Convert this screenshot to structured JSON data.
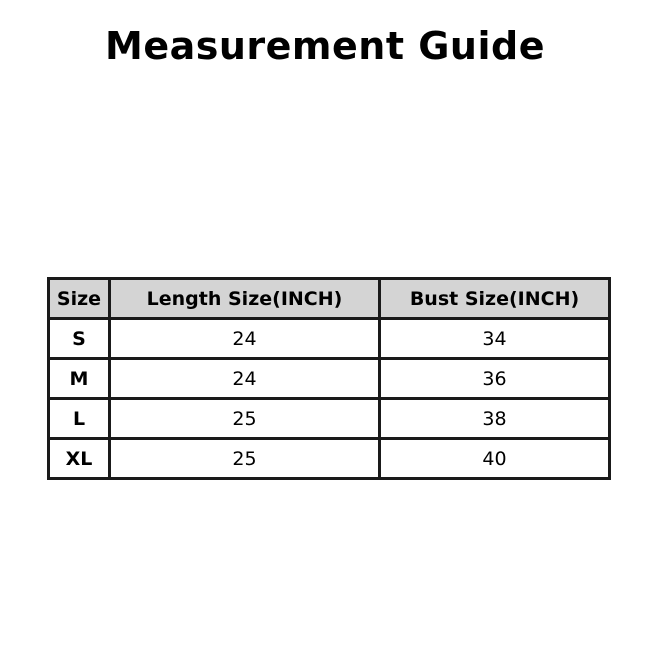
{
  "title": "Measurement Guide",
  "table": {
    "headers": [
      "Size",
      "Length Size(INCH)",
      "Bust Size(INCH)"
    ],
    "rows": [
      [
        "S",
        "24",
        "34"
      ],
      [
        "M",
        "24",
        "36"
      ],
      [
        "L",
        "25",
        "38"
      ],
      [
        "XL",
        "25",
        "40"
      ]
    ]
  }
}
